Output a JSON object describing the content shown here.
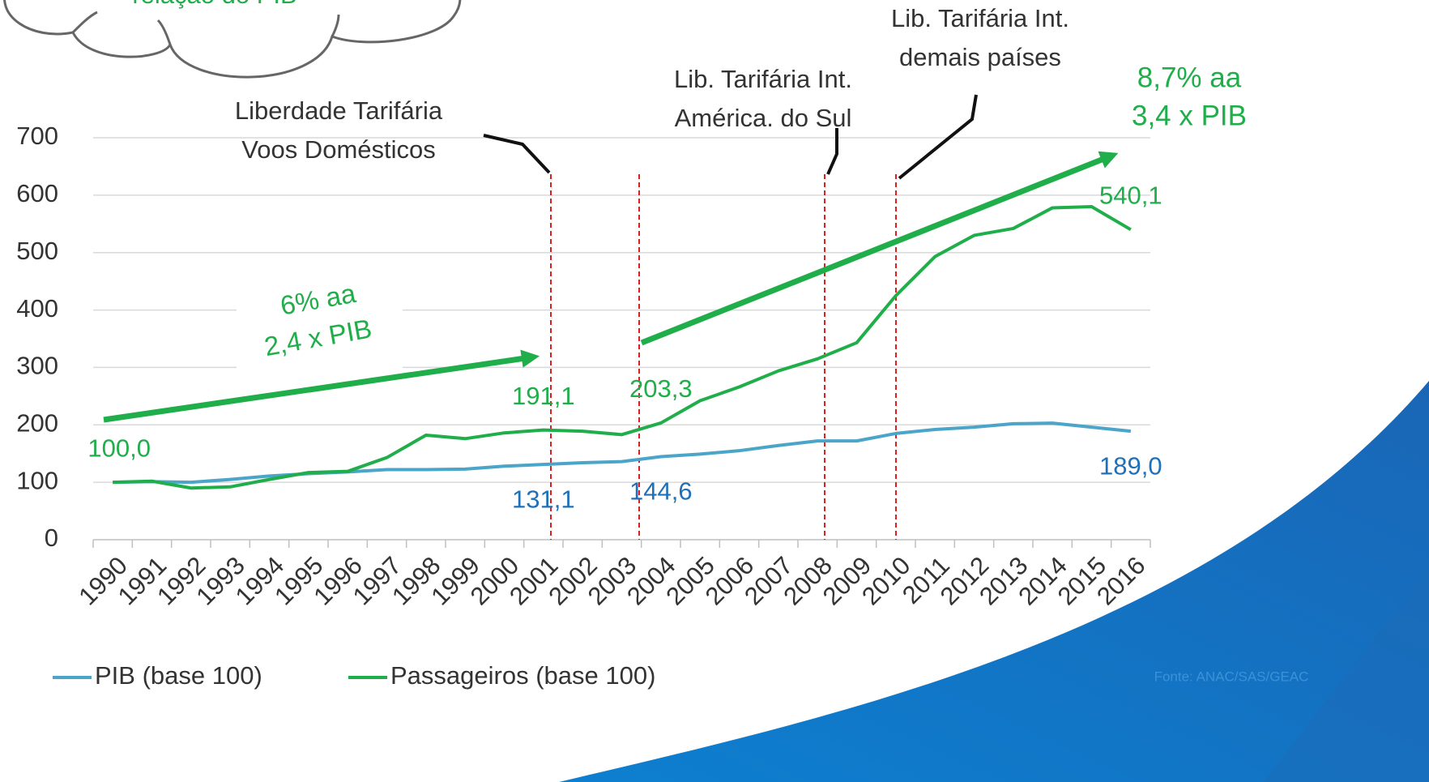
{
  "chart_data": {
    "type": "line",
    "categories": [
      "1990",
      "1991",
      "1992",
      "1993",
      "1994",
      "1995",
      "1996",
      "1997",
      "1998",
      "1999",
      "2000",
      "2001",
      "2002",
      "2003",
      "2004",
      "2005",
      "2006",
      "2007",
      "2008",
      "2009",
      "2010",
      "2011",
      "2012",
      "2013",
      "2014",
      "2015",
      "2016"
    ],
    "series": [
      {
        "name": "PIB (base 100)",
        "color": "#4aa5c9",
        "values": [
          100,
          101,
          100,
          105,
          111,
          115,
          118,
          122,
          122,
          123,
          128,
          131.1,
          134,
          136,
          144.6,
          149,
          155,
          164,
          172,
          172,
          185,
          192,
          196,
          202,
          203,
          196,
          189.0
        ],
        "value_labels": [
          null,
          null,
          null,
          null,
          null,
          null,
          null,
          null,
          null,
          null,
          null,
          "131,1",
          null,
          null,
          "144,6",
          null,
          null,
          null,
          null,
          null,
          null,
          null,
          null,
          null,
          null,
          null,
          "189,0"
        ],
        "label_color": "#1f70b8"
      },
      {
        "name": "Passageiros (base 100)",
        "color": "#1fae4a",
        "values": [
          100.0,
          102,
          90,
          92,
          105,
          117,
          119,
          143,
          182,
          176,
          186,
          191.1,
          189,
          183,
          203.3,
          242,
          266,
          294,
          315,
          343,
          425,
          493,
          530,
          542,
          578,
          580,
          540.1
        ],
        "value_labels": [
          "100,0",
          null,
          null,
          null,
          null,
          null,
          null,
          null,
          null,
          null,
          null,
          "191,1",
          null,
          null,
          "203,3",
          null,
          null,
          null,
          null,
          null,
          null,
          null,
          null,
          null,
          null,
          null,
          "540,1"
        ],
        "label_color": "#1fae4a"
      }
    ],
    "ylim": [
      0,
      700
    ],
    "yticks": [
      0,
      100,
      200,
      300,
      400,
      500,
      600,
      700
    ],
    "grid": true,
    "annotations": [
      {
        "lines": [
          "Liberdade Tarifária",
          "Voos Domésticos"
        ]
      },
      {
        "lines": [
          "Lib. Tarifária Int.",
          "América. do Sul"
        ]
      },
      {
        "lines": [
          "Lib. Tarifária Int.",
          "demais países"
        ]
      }
    ],
    "trend_labels": [
      {
        "lines": [
          "6% aa",
          "2,4 x PIB"
        ]
      },
      {
        "lines": [
          "8,7% aa",
          "3,4 x PIB"
        ]
      }
    ],
    "cloud_text": "relação do PIB",
    "source": "Fonte: ANAC/SAS/GEAC"
  }
}
